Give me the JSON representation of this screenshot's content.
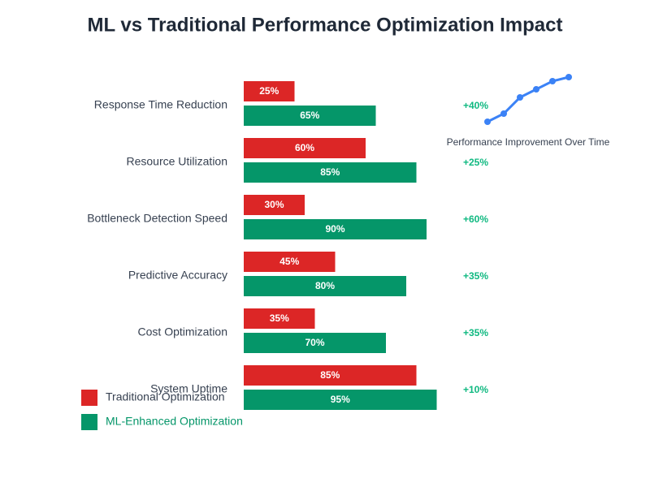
{
  "chart_data": [
    {
      "type": "hbar",
      "title": "ML vs Traditional Performance Optimization Impact",
      "categories": [
        "Response Time Reduction",
        "Resource Utilization",
        "Bottleneck Detection Speed",
        "Predictive Accuracy",
        "Cost Optimization",
        "System Uptime"
      ],
      "series": [
        {
          "name": "Traditional Optimization",
          "color": "#dc2626",
          "values": [
            25,
            60,
            30,
            45,
            35,
            85
          ],
          "value_labels": [
            "25%",
            "60%",
            "30%",
            "45%",
            "35%",
            "85%"
          ]
        },
        {
          "name": "ML-Enhanced Optimization",
          "color": "#059669",
          "values": [
            65,
            85,
            90,
            80,
            70,
            95
          ],
          "value_labels": [
            "65%",
            "85%",
            "90%",
            "80%",
            "70%",
            "95%"
          ]
        }
      ],
      "improvements": [
        "+40%",
        "+25%",
        "+60%",
        "+35%",
        "+35%",
        "+10%"
      ],
      "xlim": [
        0,
        100
      ]
    },
    {
      "type": "line",
      "title": "Performance Improvement Over Time",
      "categories": [
        null,
        null,
        null,
        null,
        null,
        null
      ],
      "values": [
        0,
        10,
        30,
        40,
        50,
        55
      ],
      "color": "#3b82f6",
      "ylim": [
        0,
        55
      ]
    }
  ]
}
